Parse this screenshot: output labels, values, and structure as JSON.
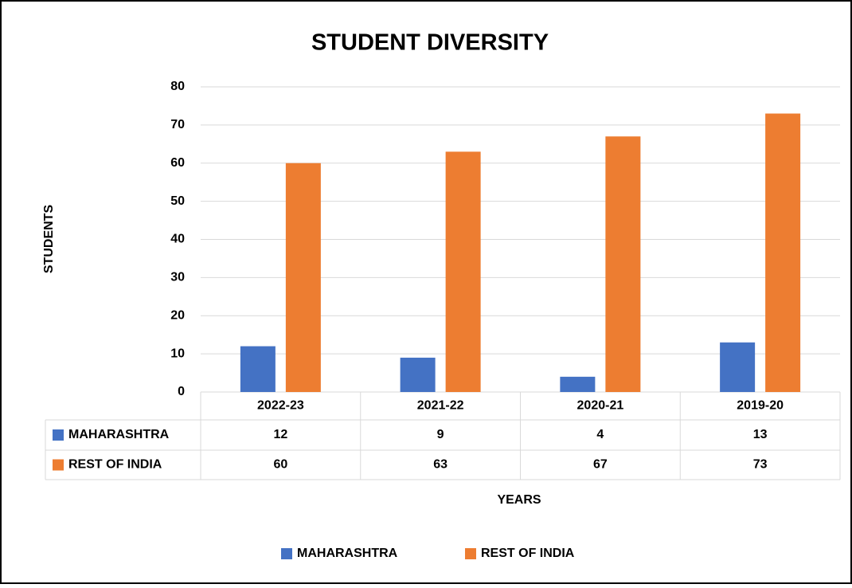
{
  "chart_data": {
    "type": "bar",
    "title": "STUDENT DIVERSITY",
    "x_label": "YEARS",
    "y_label": "STUDENTS",
    "categories": [
      "2022-23",
      "2021-22",
      "2020-21",
      "2019-20"
    ],
    "series": [
      {
        "name": "MAHARASHTRA",
        "color": "#4472c4",
        "values": [
          12,
          9,
          4,
          13
        ]
      },
      {
        "name": "REST OF INDIA",
        "color": "#ed7d31",
        "values": [
          60,
          63,
          67,
          73
        ]
      }
    ],
    "ylim": [
      0,
      80
    ],
    "yticks": [
      0,
      10,
      20,
      30,
      40,
      50,
      60,
      70,
      80
    ],
    "grid": true,
    "data_table": true,
    "legend": "bottom"
  }
}
